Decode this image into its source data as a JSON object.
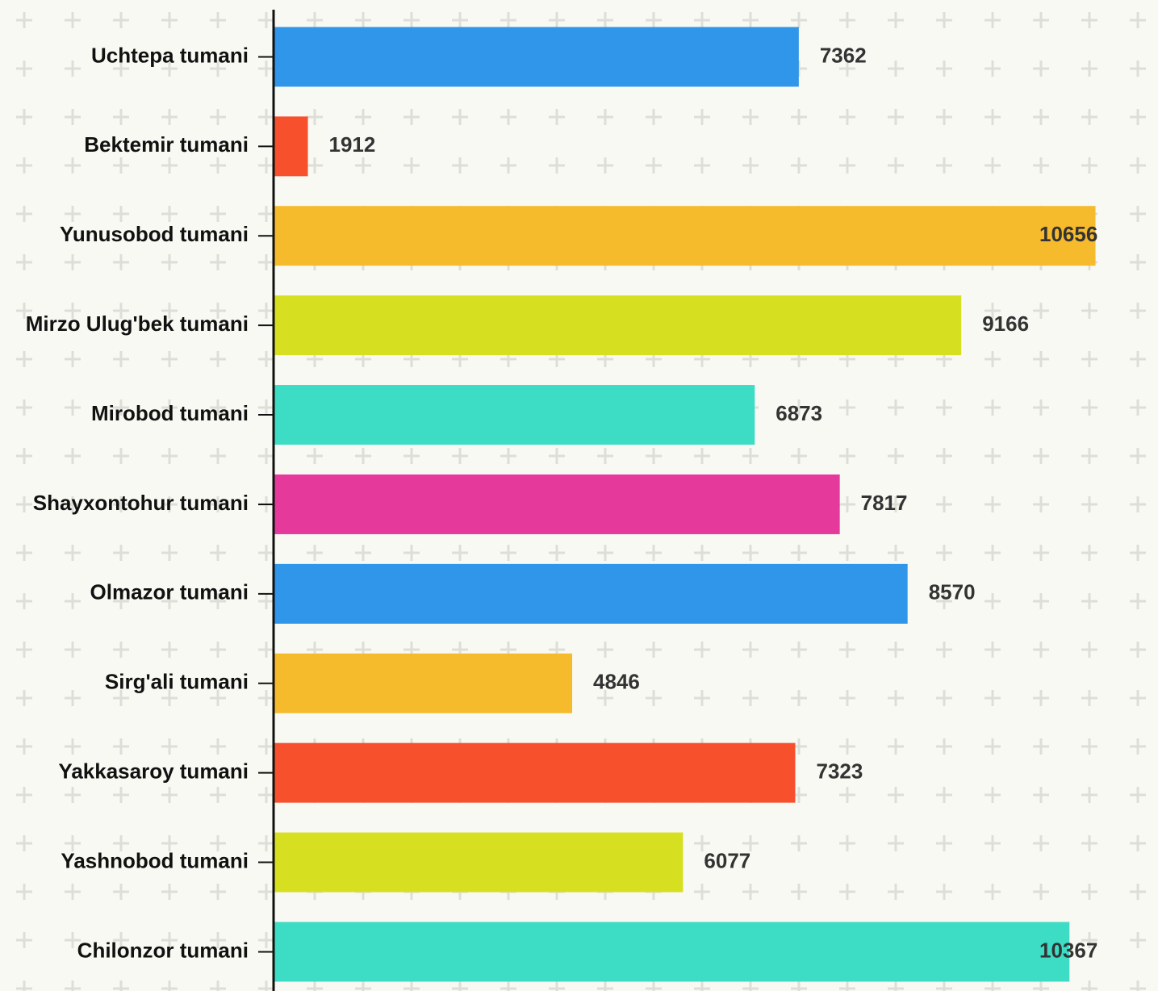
{
  "chart_data": {
    "type": "bar",
    "orientation": "horizontal",
    "categories": [
      "Uchtepa tumani",
      "Bektemir tumani",
      "Yunusobod tumani",
      "Mirzo Ulug'bek tumani",
      "Mirobod tumani",
      "Shayxontohur tumani",
      "Olmazor tumani",
      "Sirg'ali tumani",
      "Yakkasaroy tumani",
      "Yashnobod tumani",
      "Chilonzor tumani"
    ],
    "values": [
      7362,
      1912,
      10656,
      9166,
      6873,
      7817,
      8570,
      4846,
      7323,
      6077,
      10367
    ],
    "colors": [
      "#3096ea",
      "#f7502d",
      "#f6ba2d",
      "#d6e021",
      "#3ddcc4",
      "#e53a9c",
      "#3096ea",
      "#f6ba2d",
      "#f7502d",
      "#d6e021",
      "#3ddcc4"
    ],
    "xlim": [
      1540,
      11350
    ]
  }
}
